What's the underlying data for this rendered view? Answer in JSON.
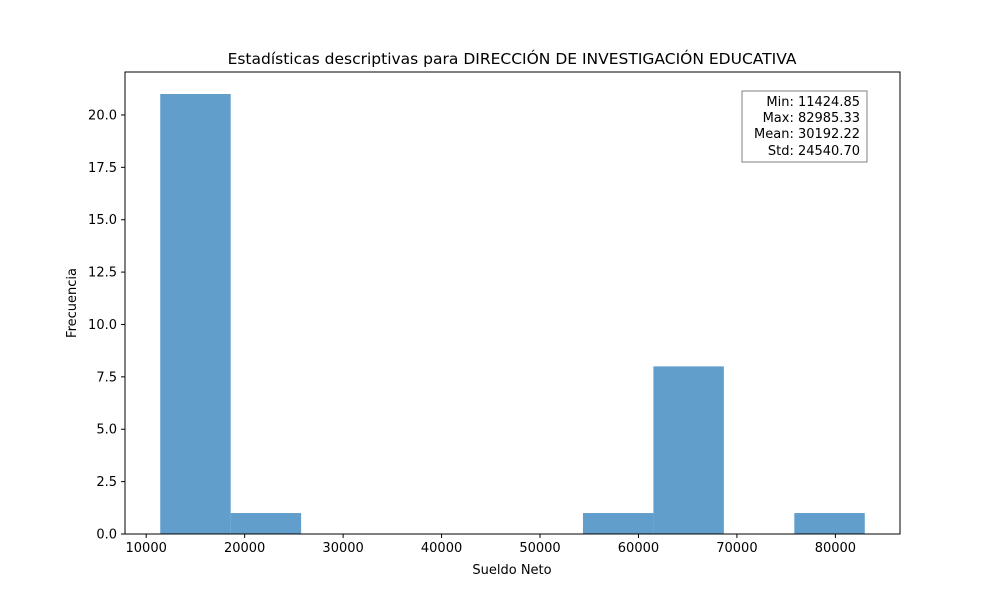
{
  "chart_data": {
    "type": "bar",
    "title": "Estadísticas descriptivas para DIRECCIÓN DE INVESTIGACIÓN EDUCATIVA",
    "xlabel": "Sueldo Neto",
    "ylabel": "Frecuencia",
    "bins": [
      [
        11424.85,
        18580.9,
        21
      ],
      [
        18580.9,
        25736.94,
        1
      ],
      [
        25736.94,
        32892.99,
        0
      ],
      [
        32892.99,
        40049.04,
        0
      ],
      [
        40049.04,
        47205.09,
        0
      ],
      [
        47205.09,
        54361.14,
        0
      ],
      [
        54361.14,
        61517.18,
        1
      ],
      [
        61517.18,
        68673.23,
        8
      ],
      [
        68673.23,
        75829.28,
        0
      ],
      [
        75829.28,
        82985.33,
        1
      ]
    ],
    "xlim": [
      7846.83,
      86563.35
    ],
    "ylim": [
      0,
      22.05
    ],
    "xticks": [
      10000,
      20000,
      30000,
      40000,
      50000,
      60000,
      70000,
      80000
    ],
    "xtick_labels": [
      "10000",
      "20000",
      "30000",
      "40000",
      "50000",
      "60000",
      "70000",
      "80000"
    ],
    "yticks": [
      0,
      2.5,
      5,
      7.5,
      10,
      12.5,
      15,
      17.5,
      20
    ],
    "ytick_labels": [
      "0.0",
      "2.5",
      "5.0",
      "7.5",
      "10.0",
      "12.5",
      "15.0",
      "17.5",
      "20.0"
    ],
    "bar_color": "#4a90c4",
    "bar_opacity": 0.87,
    "grid": false,
    "stats_box": {
      "placement": "top-right",
      "lines": [
        "Min: 11424.85",
        "Max: 82985.33",
        "Mean: 30192.22",
        "Std: 24540.70"
      ]
    }
  }
}
